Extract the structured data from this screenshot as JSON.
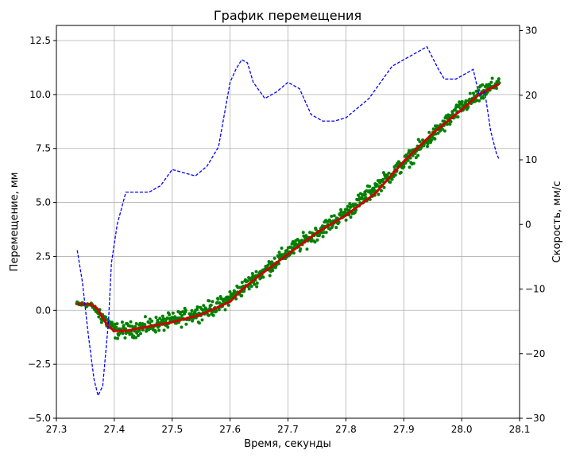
{
  "chart_data": {
    "type": "line",
    "title": "График перемещения",
    "xlabel": "Время, секунды",
    "ylabel": "Перемещение, мм",
    "y2label": "Скорость, мм/с",
    "xlim": [
      27.3,
      28.1
    ],
    "ylim": [
      -5.0,
      13.2
    ],
    "y2lim": [
      -30,
      30.8
    ],
    "xticks": [
      "27.3",
      "27.4",
      "27.5",
      "27.6",
      "27.7",
      "27.8",
      "27.9",
      "28.0",
      "28.1"
    ],
    "yticks": [
      "−5.0",
      "−2.5",
      "0.0",
      "2.5",
      "5.0",
      "7.5",
      "10.0",
      "12.5"
    ],
    "y2ticks": [
      "−30",
      "−20",
      "−10",
      "0",
      "10",
      "20",
      "30"
    ],
    "grid": true,
    "series": [
      {
        "kind": "scatter",
        "axis": "left",
        "color": "#008000",
        "x_range": [
          27.335,
          28.065
        ],
        "trend_points": [
          [
            27.335,
            0.3
          ],
          [
            27.36,
            0.25
          ],
          [
            27.38,
            -0.3
          ],
          [
            27.4,
            -0.95
          ],
          [
            27.43,
            -0.9
          ],
          [
            27.5,
            -0.5
          ],
          [
            27.58,
            0.2
          ],
          [
            27.62,
            1.0
          ],
          [
            27.7,
            2.7
          ],
          [
            27.8,
            4.5
          ],
          [
            27.9,
            6.8
          ],
          [
            28.0,
            9.4
          ],
          [
            28.065,
            10.6
          ]
        ],
        "noise": 0.22
      },
      {
        "kind": "line",
        "axis": "left",
        "color": "#cc0000",
        "points": [
          [
            27.335,
            0.3
          ],
          [
            27.36,
            0.28
          ],
          [
            27.37,
            0.1
          ],
          [
            27.38,
            -0.35
          ],
          [
            27.39,
            -0.75
          ],
          [
            27.4,
            -0.95
          ],
          [
            27.42,
            -0.95
          ],
          [
            27.45,
            -0.8
          ],
          [
            27.5,
            -0.55
          ],
          [
            27.55,
            -0.2
          ],
          [
            27.6,
            0.4
          ],
          [
            27.62,
            0.95
          ],
          [
            27.65,
            1.6
          ],
          [
            27.7,
            2.6
          ],
          [
            27.75,
            3.6
          ],
          [
            27.8,
            4.4
          ],
          [
            27.85,
            5.4
          ],
          [
            27.9,
            6.9
          ],
          [
            27.95,
            8.2
          ],
          [
            28.0,
            9.3
          ],
          [
            28.03,
            10.0
          ],
          [
            28.065,
            10.5
          ]
        ]
      },
      {
        "kind": "line",
        "axis": "right",
        "style": "dashed",
        "color": "#0000ff",
        "points": [
          [
            27.336,
            -4
          ],
          [
            27.345,
            -9
          ],
          [
            27.355,
            -17
          ],
          [
            27.365,
            -24
          ],
          [
            27.372,
            -26.5
          ],
          [
            27.38,
            -25
          ],
          [
            27.39,
            -15
          ],
          [
            27.395,
            -6
          ],
          [
            27.405,
            0
          ],
          [
            27.42,
            5
          ],
          [
            27.44,
            5
          ],
          [
            27.46,
            5
          ],
          [
            27.48,
            6
          ],
          [
            27.5,
            8.5
          ],
          [
            27.52,
            8.0
          ],
          [
            27.54,
            7.5
          ],
          [
            27.56,
            9
          ],
          [
            27.58,
            12
          ],
          [
            27.59,
            17
          ],
          [
            27.6,
            22
          ],
          [
            27.61,
            24
          ],
          [
            27.62,
            25.5
          ],
          [
            27.63,
            25
          ],
          [
            27.64,
            22
          ],
          [
            27.66,
            19.5
          ],
          [
            27.68,
            20.5
          ],
          [
            27.7,
            22
          ],
          [
            27.72,
            21
          ],
          [
            27.74,
            17
          ],
          [
            27.76,
            16
          ],
          [
            27.78,
            16
          ],
          [
            27.8,
            16.5
          ],
          [
            27.82,
            18
          ],
          [
            27.84,
            19.5
          ],
          [
            27.86,
            22
          ],
          [
            27.88,
            24.5
          ],
          [
            27.9,
            25.5
          ],
          [
            27.92,
            26.5
          ],
          [
            27.94,
            27.5
          ],
          [
            27.96,
            24
          ],
          [
            27.97,
            22.5
          ],
          [
            27.99,
            22.5
          ],
          [
            28.0,
            23
          ],
          [
            28.02,
            24
          ],
          [
            28.03,
            20
          ],
          [
            28.04,
            20.5
          ],
          [
            28.05,
            14.5
          ],
          [
            28.06,
            11
          ],
          [
            28.065,
            10
          ]
        ]
      }
    ]
  }
}
